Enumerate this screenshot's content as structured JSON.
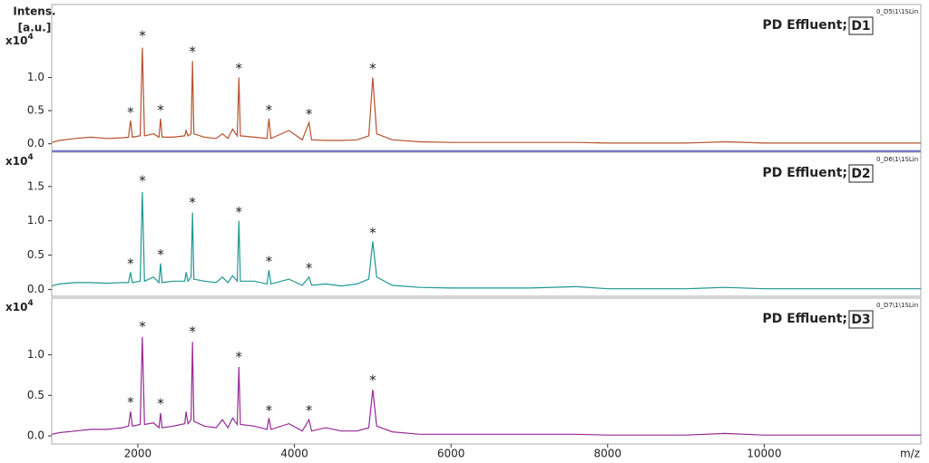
{
  "chart_data": [
    {
      "type": "line",
      "title": "PD Effluent;",
      "sample": "D1",
      "run_id": "0_D5\\1\\1SLin",
      "y_label": [
        "Intens.",
        "[a.u.]"
      ],
      "y_scale_label": "x10",
      "y_scale_exponent": "4",
      "color": "#b4532e",
      "xlim": [
        900,
        12000
      ],
      "ylim": [
        -0.1,
        2.1
      ],
      "yticks": [
        {
          "value": 0,
          "label": "0.0"
        },
        {
          "value": 0.5,
          "label": "0.5"
        },
        {
          "value": 1,
          "label": "1.0"
        }
      ],
      "x": [
        900,
        1000,
        1200,
        1400,
        1600,
        1800,
        1880,
        1907,
        1930,
        2030,
        2058,
        2085,
        2200,
        2270,
        2290,
        2310,
        2450,
        2600,
        2616,
        2640,
        2680,
        2698,
        2716,
        2850,
        3000,
        3081,
        3150,
        3210,
        3270,
        3290,
        3310,
        3488,
        3650,
        3674,
        3700,
        3930,
        4100,
        4186,
        4220,
        4400,
        4600,
        4800,
        4950,
        5000,
        5050,
        5250,
        5600,
        6000,
        6500,
        7000,
        7600,
        8000,
        8500,
        9000,
        9500,
        10000,
        10500,
        11000,
        11500,
        12000
      ],
      "values": [
        0.02,
        0.05,
        0.08,
        0.1,
        0.08,
        0.09,
        0.1,
        0.35,
        0.1,
        0.12,
        1.45,
        0.12,
        0.15,
        0.1,
        0.38,
        0.1,
        0.1,
        0.12,
        0.2,
        0.12,
        0.15,
        1.25,
        0.15,
        0.1,
        0.08,
        0.15,
        0.08,
        0.22,
        0.12,
        1.0,
        0.12,
        0.1,
        0.08,
        0.38,
        0.08,
        0.2,
        0.06,
        0.32,
        0.06,
        0.05,
        0.05,
        0.06,
        0.12,
        1.0,
        0.15,
        0.06,
        0.03,
        0.02,
        0.02,
        0.02,
        0.02,
        0.01,
        0.01,
        0.01,
        0.03,
        0.01,
        0.01,
        0.01,
        0.01,
        0.01
      ],
      "annotations": [
        {
          "text": "*",
          "x": 1907,
          "y": 0.47
        },
        {
          "text": "*",
          "x": 2058,
          "y": 1.62
        },
        {
          "text": "*",
          "x": 2290,
          "y": 0.5
        },
        {
          "text": "*",
          "x": 2698,
          "y": 1.38
        },
        {
          "text": "*",
          "x": 3290,
          "y": 1.13
        },
        {
          "text": "*",
          "x": 3674,
          "y": 0.5
        },
        {
          "text": "*",
          "x": 4186,
          "y": 0.44
        },
        {
          "text": "*",
          "x": 5000,
          "y": 1.13
        }
      ]
    },
    {
      "type": "line",
      "title": "PD Effluent;",
      "sample": "D2",
      "run_id": "0_D6\\1\\1SLin",
      "y_scale_label": "x10",
      "y_scale_exponent": "4",
      "color": "#1f9793",
      "xlim": [
        900,
        12000
      ],
      "ylim": [
        -0.1,
        2.0
      ],
      "yticks": [
        {
          "value": 0,
          "label": "0.0"
        },
        {
          "value": 0.5,
          "label": "0.5"
        },
        {
          "value": 1,
          "label": "1.0"
        },
        {
          "value": 1.5,
          "label": "1.5"
        }
      ],
      "x": [
        900,
        1000,
        1200,
        1400,
        1600,
        1800,
        1880,
        1907,
        1930,
        2030,
        2058,
        2085,
        2200,
        2270,
        2290,
        2310,
        2450,
        2600,
        2616,
        2640,
        2680,
        2698,
        2716,
        2850,
        3000,
        3081,
        3150,
        3210,
        3270,
        3290,
        3310,
        3488,
        3650,
        3674,
        3700,
        3930,
        4100,
        4186,
        4220,
        4400,
        4600,
        4800,
        4950,
        5000,
        5050,
        5250,
        5600,
        6000,
        6500,
        7000,
        7600,
        8000,
        8500,
        9000,
        9500,
        10000,
        10500,
        11000,
        11500,
        12000
      ],
      "values": [
        0.05,
        0.08,
        0.1,
        0.1,
        0.09,
        0.1,
        0.1,
        0.25,
        0.1,
        0.12,
        1.42,
        0.12,
        0.18,
        0.1,
        0.38,
        0.1,
        0.12,
        0.12,
        0.25,
        0.12,
        0.18,
        1.12,
        0.15,
        0.12,
        0.1,
        0.18,
        0.1,
        0.2,
        0.12,
        1.0,
        0.12,
        0.12,
        0.08,
        0.28,
        0.08,
        0.15,
        0.06,
        0.18,
        0.06,
        0.08,
        0.05,
        0.08,
        0.15,
        0.7,
        0.18,
        0.06,
        0.03,
        0.02,
        0.02,
        0.02,
        0.04,
        0.01,
        0.01,
        0.01,
        0.03,
        0.01,
        0.01,
        0.01,
        0.01,
        0.01
      ],
      "annotations": [
        {
          "text": "*",
          "x": 1907,
          "y": 0.37
        },
        {
          "text": "*",
          "x": 2058,
          "y": 1.58
        },
        {
          "text": "*",
          "x": 2290,
          "y": 0.5
        },
        {
          "text": "*",
          "x": 2698,
          "y": 1.26
        },
        {
          "text": "*",
          "x": 3290,
          "y": 1.12
        },
        {
          "text": "*",
          "x": 3674,
          "y": 0.4
        },
        {
          "text": "*",
          "x": 4186,
          "y": 0.3
        },
        {
          "text": "*",
          "x": 5000,
          "y": 0.82
        }
      ]
    },
    {
      "type": "line",
      "title": "PD Effluent;",
      "sample": "D3",
      "run_id": "0_D7\\1\\1SLin",
      "y_scale_label": "x10",
      "y_scale_exponent": "4",
      "color": "#962a96",
      "xlim": [
        900,
        12000
      ],
      "ylim": [
        -0.1,
        1.7
      ],
      "yticks": [
        {
          "value": 0,
          "label": "0.0"
        },
        {
          "value": 0.5,
          "label": "0.5"
        },
        {
          "value": 1,
          "label": "1.0"
        }
      ],
      "xticks": [
        2000,
        4000,
        6000,
        8000,
        10000
      ],
      "x_label": "m/z",
      "x": [
        900,
        1000,
        1200,
        1400,
        1600,
        1800,
        1880,
        1907,
        1930,
        2030,
        2058,
        2085,
        2200,
        2270,
        2290,
        2310,
        2450,
        2600,
        2616,
        2640,
        2680,
        2698,
        2716,
        2850,
        3000,
        3081,
        3150,
        3210,
        3270,
        3290,
        3310,
        3488,
        3650,
        3674,
        3700,
        3930,
        4100,
        4186,
        4220,
        4400,
        4600,
        4800,
        4950,
        5000,
        5050,
        5250,
        5600,
        6000,
        6500,
        7000,
        7600,
        8000,
        8500,
        9000,
        9500,
        10000,
        10500,
        11000,
        11500,
        12000
      ],
      "values": [
        0.02,
        0.04,
        0.06,
        0.08,
        0.08,
        0.1,
        0.12,
        0.3,
        0.12,
        0.14,
        1.22,
        0.14,
        0.16,
        0.1,
        0.28,
        0.1,
        0.12,
        0.15,
        0.3,
        0.15,
        0.2,
        1.16,
        0.18,
        0.12,
        0.1,
        0.2,
        0.1,
        0.22,
        0.14,
        0.85,
        0.14,
        0.12,
        0.08,
        0.22,
        0.08,
        0.15,
        0.06,
        0.2,
        0.06,
        0.1,
        0.06,
        0.06,
        0.1,
        0.57,
        0.12,
        0.05,
        0.02,
        0.02,
        0.02,
        0.02,
        0.02,
        0.01,
        0.01,
        0.01,
        0.03,
        0.01,
        0.01,
        0.01,
        0.01,
        0.01
      ],
      "annotations": [
        {
          "text": "*",
          "x": 1907,
          "y": 0.41
        },
        {
          "text": "*",
          "x": 2058,
          "y": 1.34
        },
        {
          "text": "*",
          "x": 2290,
          "y": 0.39
        },
        {
          "text": "*",
          "x": 2698,
          "y": 1.28
        },
        {
          "text": "*",
          "x": 3290,
          "y": 0.97
        },
        {
          "text": "*",
          "x": 3674,
          "y": 0.31
        },
        {
          "text": "*",
          "x": 4186,
          "y": 0.31
        },
        {
          "text": "*",
          "x": 5000,
          "y": 0.68
        }
      ]
    }
  ]
}
